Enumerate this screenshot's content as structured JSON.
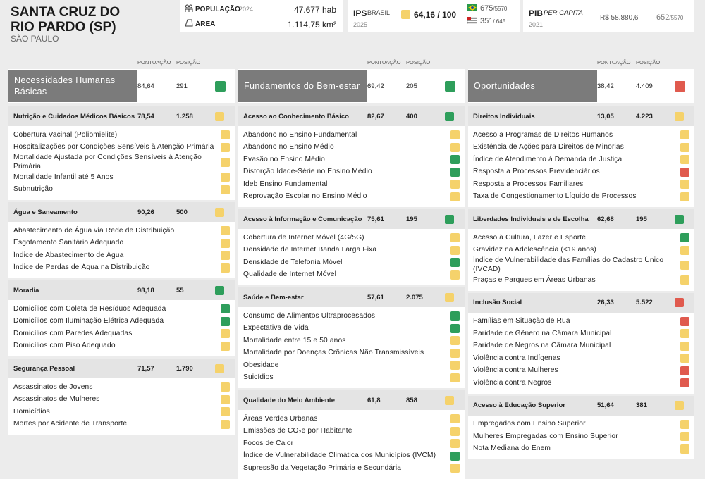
{
  "header": {
    "title": [
      "SANTA CRUZ DO",
      "RIO PARDO (SP)"
    ],
    "state": "SÃO PAULO"
  },
  "population": {
    "label": "POPULAÇÃO",
    "year": "2024",
    "value": "47.677 hab"
  },
  "area": {
    "label": "ÁREA",
    "value": "1.114,75 km²"
  },
  "ips": {
    "label": "IPS",
    "scope": "BRASIL",
    "year": "2025",
    "score": "64,16 / 100",
    "color": "#f5d26b",
    "rank_brazil": "675",
    "total_brazil": "/5570",
    "rank_state": "351",
    "total_state": "/ 645"
  },
  "pib": {
    "label": "PIB",
    "qualifier": "PER CAPITA",
    "year": "2021",
    "value": "R$ 58.880,6",
    "rank": "652",
    "total": "/5570"
  },
  "labels": {
    "score": "PONTUAÇÃO",
    "rank": "POSIÇÃO"
  },
  "dimensions": [
    {
      "name": "Necessidades Humanas Básicas",
      "score": "84,64",
      "rank": "291",
      "color": "#2e9e5b",
      "components": [
        {
          "name": "Nutrição e Cuidados Médicos Básicos",
          "score": "78,54",
          "rank": "1.258",
          "color": "#f5d26b",
          "indicators": [
            {
              "name": "Cobertura Vacinal (Poliomielite)",
              "color": "#f5d26b"
            },
            {
              "name": "Hospitalizações por Condições Sensíveis à Atenção Primária",
              "color": "#f5d26b"
            },
            {
              "name": "Mortalidade Ajustada por Condições Sensíveis à Atenção Primária",
              "color": "#f5d26b"
            },
            {
              "name": "Mortalidade Infantil até 5 Anos",
              "color": "#f5d26b"
            },
            {
              "name": "Subnutrição",
              "color": "#f5d26b"
            }
          ]
        },
        {
          "name": "Água e Saneamento",
          "score": "90,26",
          "rank": "500",
          "color": "#f5d26b",
          "indicators": [
            {
              "name": "Abastecimento de Água via Rede de Distribuição",
              "color": "#f5d26b"
            },
            {
              "name": "Esgotamento Sanitário Adequado",
              "color": "#f5d26b"
            },
            {
              "name": "Índice de Abastecimento de Água",
              "color": "#f5d26b"
            },
            {
              "name": "Índice de Perdas de Água na Distribuição",
              "color": "#f5d26b"
            }
          ]
        },
        {
          "name": "Moradia",
          "score": "98,18",
          "rank": "55",
          "color": "#2e9e5b",
          "indicators": [
            {
              "name": "Domicílios com Coleta de Resíduos Adequada",
              "color": "#2e9e5b"
            },
            {
              "name": "Domicílios com Iluminação Elétrica Adequada",
              "color": "#2e9e5b"
            },
            {
              "name": "Domicílios com Paredes Adequadas",
              "color": "#f5d26b"
            },
            {
              "name": "Domicílios com Piso Adequado",
              "color": "#f5d26b"
            }
          ]
        },
        {
          "name": "Segurança Pessoal",
          "score": "71,57",
          "rank": "1.790",
          "color": "#f5d26b",
          "indicators": [
            {
              "name": "Assassinatos de Jovens",
              "color": "#f5d26b"
            },
            {
              "name": "Assassinatos de Mulheres",
              "color": "#f5d26b"
            },
            {
              "name": "Homicídios",
              "color": "#f5d26b"
            },
            {
              "name": "Mortes por Acidente de Transporte",
              "color": "#f5d26b"
            }
          ]
        }
      ]
    },
    {
      "name": "Fundamentos do Bem-estar",
      "score": "69,42",
      "rank": "205",
      "color": "#2e9e5b",
      "components": [
        {
          "name": "Acesso ao Conhecimento Básico",
          "score": "82,67",
          "rank": "400",
          "color": "#2e9e5b",
          "indicators": [
            {
              "name": "Abandono no Ensino Fundamental",
              "color": "#f5d26b"
            },
            {
              "name": "Abandono no Ensino Médio",
              "color": "#f5d26b"
            },
            {
              "name": "Evasão no Ensino Médio",
              "color": "#2e9e5b"
            },
            {
              "name": "Distorção Idade-Série no Ensino Médio",
              "color": "#2e9e5b"
            },
            {
              "name": "Ideb Ensino Fundamental",
              "color": "#f5d26b"
            },
            {
              "name": "Reprovação Escolar no Ensino Médio",
              "color": "#f5d26b"
            }
          ]
        },
        {
          "name": "Acesso à Informação e Comunicação",
          "score": "75,61",
          "rank": "195",
          "color": "#2e9e5b",
          "indicators": [
            {
              "name": "Cobertura de Internet Móvel (4G/5G)",
              "color": "#f5d26b"
            },
            {
              "name": "Densidade de Internet Banda Larga Fixa",
              "color": "#f5d26b"
            },
            {
              "name": "Densidade de Telefonia Móvel",
              "color": "#2e9e5b"
            },
            {
              "name": "Qualidade de Internet Móvel",
              "color": "#f5d26b"
            }
          ]
        },
        {
          "name": "Saúde e Bem-estar",
          "score": "57,61",
          "rank": "2.075",
          "color": "#f5d26b",
          "indicators": [
            {
              "name": "Consumo de Alimentos Ultraprocesados",
              "color": "#2e9e5b"
            },
            {
              "name": "Expectativa de Vida",
              "color": "#2e9e5b"
            },
            {
              "name": "Mortalidade entre 15 e 50 anos",
              "color": "#f5d26b"
            },
            {
              "name": "Mortalidade por Doenças Crônicas Não Transmissíveis",
              "color": "#f5d26b"
            },
            {
              "name": "Obesidade",
              "color": "#f5d26b"
            },
            {
              "name": "Suicídios",
              "color": "#f5d26b"
            }
          ]
        },
        {
          "name": "Qualidade do Meio Ambiente",
          "score": "61,8",
          "rank": "858",
          "color": "#f5d26b",
          "indicators": [
            {
              "name": "Áreas Verdes Urbanas",
              "color": "#f5d26b"
            },
            {
              "name": "Emissões de CO₂e por Habitante",
              "color": "#f5d26b"
            },
            {
              "name": "Focos de Calor",
              "color": "#f5d26b"
            },
            {
              "name": "Índice de Vulnerabilidade Climática dos Municípios (IVCM)",
              "color": "#2e9e5b"
            },
            {
              "name": "Supressão da Vegetação Primária e Secundária",
              "color": "#f5d26b"
            }
          ]
        }
      ]
    },
    {
      "name": "Oportunidades",
      "score": "38,42",
      "rank": "4.409",
      "color": "#e05a4e",
      "components": [
        {
          "name": "Direitos Individuais",
          "score": "13,05",
          "rank": "4.223",
          "color": "#f5d26b",
          "indicators": [
            {
              "name": "Acesso a Programas de Direitos Humanos",
              "color": "#f5d26b"
            },
            {
              "name": "Existência de Ações para Direitos de Minorias",
              "color": "#f5d26b"
            },
            {
              "name": "Índice de Atendimento à Demanda de Justiça",
              "color": "#f5d26b"
            },
            {
              "name": "Resposta a Processos Previdenciários",
              "color": "#e05a4e"
            },
            {
              "name": "Resposta a Processos Familiares",
              "color": "#f5d26b"
            },
            {
              "name": "Taxa de Congestionamento Líquido de Processos",
              "color": "#f5d26b"
            }
          ]
        },
        {
          "name": "Liberdades Individuais e de Escolha",
          "score": "62,68",
          "rank": "195",
          "color": "#2e9e5b",
          "indicators": [
            {
              "name": "Acesso à Cultura, Lazer e Esporte",
              "color": "#2e9e5b"
            },
            {
              "name": "Gravidez na Adolescência (<19 anos)",
              "color": "#f5d26b"
            },
            {
              "name": "Índice de Vulnerabilidade das Famílias do Cadastro Único (IVCAD)",
              "color": "#f5d26b"
            },
            {
              "name": "Praças e Parques em Áreas Urbanas",
              "color": "#f5d26b"
            }
          ]
        },
        {
          "name": "Inclusão Social",
          "score": "26,33",
          "rank": "5.522",
          "color": "#e05a4e",
          "indicators": [
            {
              "name": "Famílias em Situação de Rua",
              "color": "#e05a4e"
            },
            {
              "name": "Paridade de Gênero na Câmara Municipal",
              "color": "#f5d26b"
            },
            {
              "name": "Paridade de Negros na Câmara Municipal",
              "color": "#f5d26b"
            },
            {
              "name": "Violência contra Indígenas",
              "color": "#f5d26b"
            },
            {
              "name": "Violência contra Mulheres",
              "color": "#e05a4e"
            },
            {
              "name": "Violência contra Negros",
              "color": "#e05a4e"
            }
          ]
        },
        {
          "name": "Acesso à Educação Superior",
          "score": "51,64",
          "rank": "381",
          "color": "#f5d26b",
          "indicators": [
            {
              "name": "Empregados com Ensino Superior",
              "color": "#f5d26b"
            },
            {
              "name": "Mulheres Empregadas com Ensino Superior",
              "color": "#f5d26b"
            },
            {
              "name": "Nota Mediana do Enem",
              "color": "#f5d26b"
            }
          ]
        }
      ]
    }
  ]
}
